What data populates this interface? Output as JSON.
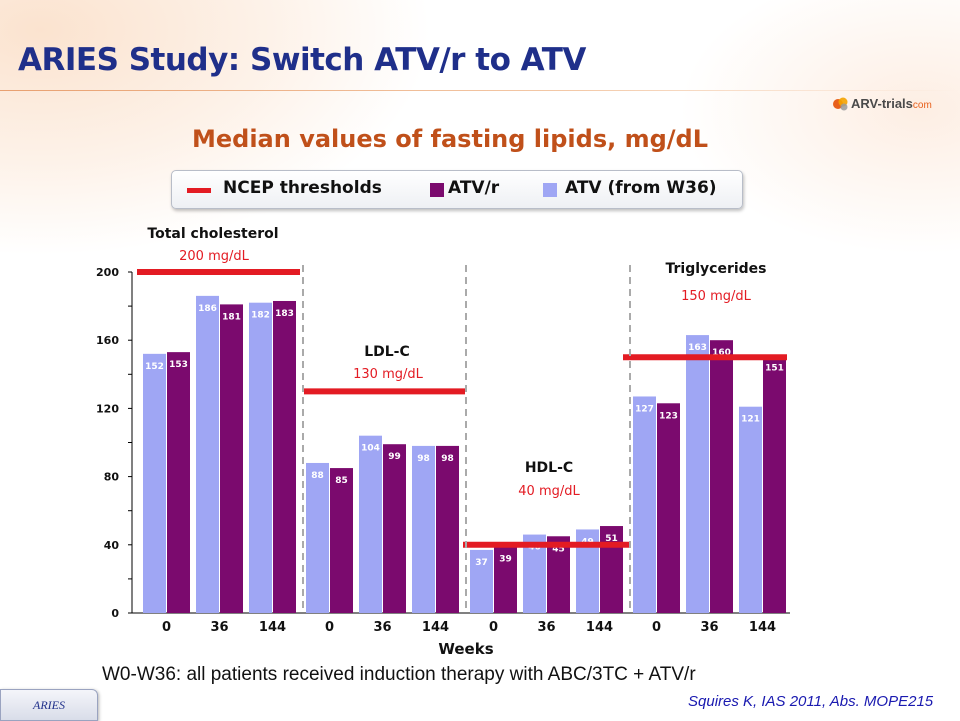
{
  "title": "ARIES Study: Switch ATV/r to ATV",
  "logo": {
    "name": "ARV-trials",
    "suffix": "com",
    "colors": [
      "#e8601c",
      "#f4a300",
      "#8a8a8a"
    ]
  },
  "subtitle": "Median values of fasting lipids, mg/dL",
  "legend": {
    "items": [
      {
        "label": "NCEP thresholds",
        "kind": "line",
        "color": "#e31b23"
      },
      {
        "label": "ATV/r",
        "kind": "square",
        "color": "#7b0a6e"
      },
      {
        "label": "ATV (from W36)",
        "kind": "square",
        "color": "#9fa6f4"
      }
    ]
  },
  "colors": {
    "atv": "#9fa6f4",
    "atvr": "#7b0a6e",
    "threshold": "#e31b23",
    "axis": "#000000",
    "divider": "#aaaaaa"
  },
  "chart_data": {
    "type": "bar",
    "xlabel": "Weeks",
    "ylabel": "",
    "ylim": [
      0,
      200
    ],
    "y_ticks": [
      0,
      40,
      80,
      120,
      160,
      200
    ],
    "categories": [
      "0",
      "36",
      "144"
    ],
    "series_names": [
      "ATV",
      "ATV/r"
    ],
    "panels": [
      {
        "name": "Total cholesterol",
        "threshold": 200,
        "threshold_label": "200 mg/dL",
        "atv": [
          152,
          186,
          182
        ],
        "atvr": [
          153,
          181,
          183
        ]
      },
      {
        "name": "LDL-C",
        "threshold": 130,
        "threshold_label": "130 mg/dL",
        "atv": [
          88,
          104,
          98
        ],
        "atvr": [
          85,
          99,
          98
        ]
      },
      {
        "name": "HDL-C",
        "threshold": 40,
        "threshold_label": "40 mg/dL",
        "atv": [
          37,
          46,
          49
        ],
        "atvr": [
          39,
          45,
          51
        ]
      },
      {
        "name": "Triglycerides",
        "threshold": 150,
        "threshold_label": "150 mg/dL",
        "atv": [
          127,
          163,
          121
        ],
        "atvr": [
          123,
          160,
          151
        ]
      }
    ]
  },
  "footnote": "W0-W36: all patients received induction therapy with ABC/3TC + ATV/r",
  "nav_tab": "ARIES",
  "citation": "Squires K, IAS 2011, Abs. MOPE215"
}
